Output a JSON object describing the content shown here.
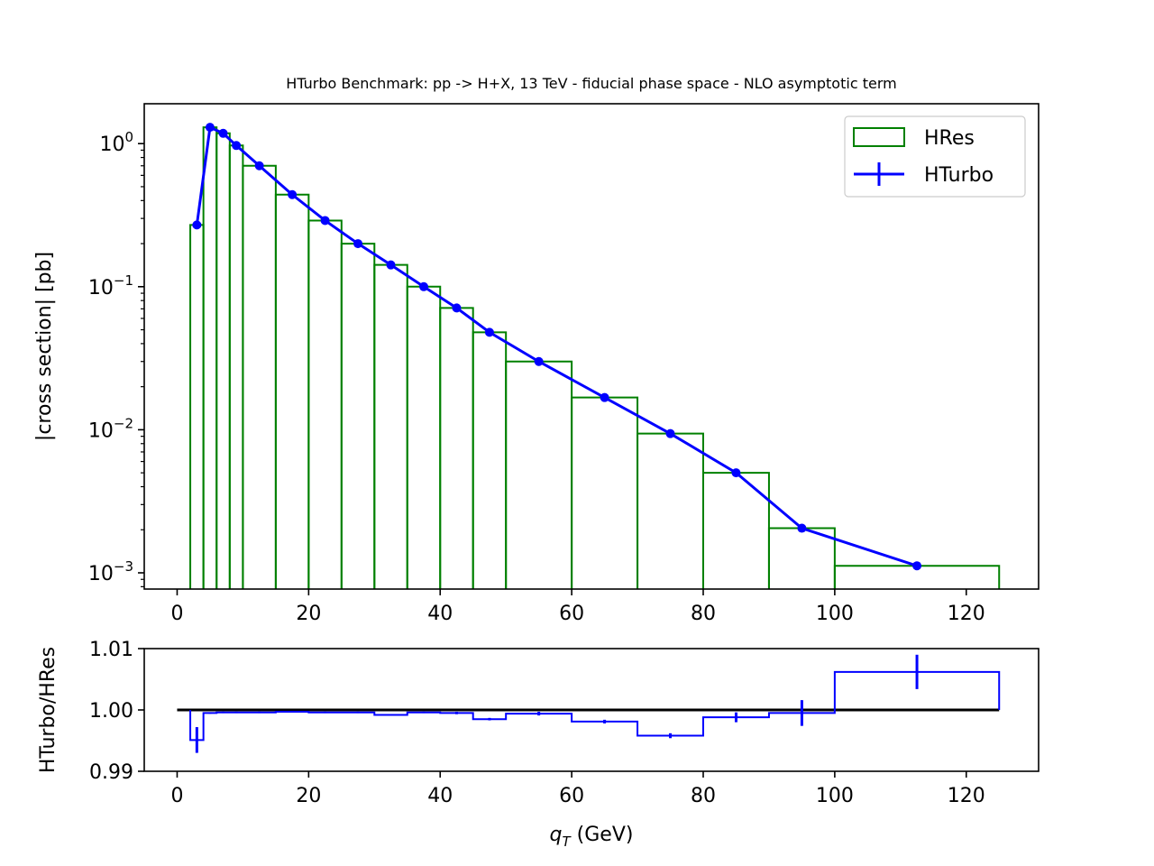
{
  "chart_data": [
    {
      "type": "bar",
      "title": "HTurbo Benchmark: pp -> H+X, 13 TeV - fiducial phase space - NLO asymptotic term",
      "ylabel": "|cross section| [pb]",
      "xlabel": "",
      "xlim": [
        -5,
        131
      ],
      "ylim": [
        0.00077,
        1.9
      ],
      "yscale": "log",
      "x_ticks": [
        0,
        20,
        40,
        60,
        80,
        100,
        120
      ],
      "y_ticks": [
        {
          "value": 1,
          "base": "10",
          "exp": "0"
        },
        {
          "value": 0.1,
          "base": "10",
          "exp": "−1"
        },
        {
          "value": 0.01,
          "base": "10",
          "exp": "−2"
        },
        {
          "value": 0.001,
          "base": "10",
          "exp": "−3"
        }
      ],
      "legend_position": "top-right",
      "series": [
        {
          "name": "HRes",
          "kind": "step-histogram",
          "color": "#008000",
          "bin_edges": [
            2,
            4,
            6,
            8,
            10,
            15,
            20,
            25,
            30,
            35,
            40,
            45,
            50,
            60,
            70,
            80,
            90,
            100,
            125
          ],
          "values": [
            0.27,
            1.3,
            1.18,
            0.97,
            0.7,
            0.44,
            0.29,
            0.2,
            0.142,
            0.1,
            0.071,
            0.048,
            0.03,
            0.0168,
            0.0094,
            0.005,
            0.00205,
            0.00112
          ]
        },
        {
          "name": "HTurbo",
          "kind": "line-markers",
          "color": "#0000ff",
          "x": [
            3,
            5,
            7,
            9,
            12.5,
            17.5,
            22.5,
            27.5,
            32.5,
            37.5,
            42.5,
            47.5,
            55,
            65,
            75,
            85,
            95,
            112.5
          ],
          "y": [
            0.27,
            1.3,
            1.18,
            0.97,
            0.7,
            0.44,
            0.29,
            0.2,
            0.142,
            0.1,
            0.071,
            0.048,
            0.03,
            0.0168,
            0.0094,
            0.005,
            0.00205,
            0.00112
          ]
        }
      ]
    },
    {
      "type": "bar",
      "title": "",
      "ylabel": "HTurbo/HRes",
      "xlabel_main": "q",
      "xlabel_sub": "T",
      "xlabel_unit": " (GeV)",
      "xlim": [
        -5,
        131
      ],
      "ylim": [
        0.99,
        1.01
      ],
      "x_ticks": [
        0,
        20,
        40,
        60,
        80,
        100,
        120
      ],
      "y_ticks": [
        "0.99",
        "1.00",
        "1.01"
      ],
      "reference_line": {
        "value": 1.0,
        "x_from": 0,
        "x_to": 125,
        "color": "#000000"
      },
      "series": [
        {
          "name": "HTurbo/HRes",
          "kind": "step-histogram-with-errors",
          "color": "#0000ff",
          "bin_edges": [
            2,
            4,
            6,
            8,
            10,
            15,
            20,
            25,
            30,
            35,
            40,
            45,
            50,
            60,
            70,
            80,
            90,
            100,
            125
          ],
          "values": [
            0.9951,
            0.9995,
            0.9996,
            0.9996,
            0.9996,
            0.9997,
            0.9996,
            0.9996,
            0.9992,
            0.9996,
            0.9995,
            0.9985,
            0.9994,
            0.9981,
            0.9958,
            0.9988,
            0.9995,
            1.0062
          ],
          "centers": [
            3,
            5,
            7,
            9,
            12.5,
            17.5,
            22.5,
            27.5,
            32.5,
            37.5,
            42.5,
            47.5,
            55,
            65,
            75,
            85,
            95,
            112.5
          ],
          "errors": [
            0.0021,
            0.0001,
            0.0001,
            0.0001,
            0.0001,
            0.0001,
            0.0001,
            0.0001,
            0.0001,
            0.0001,
            0.0002,
            0.0002,
            0.0003,
            0.0003,
            0.0004,
            0.0008,
            0.0021,
            0.0028
          ]
        }
      ]
    }
  ]
}
